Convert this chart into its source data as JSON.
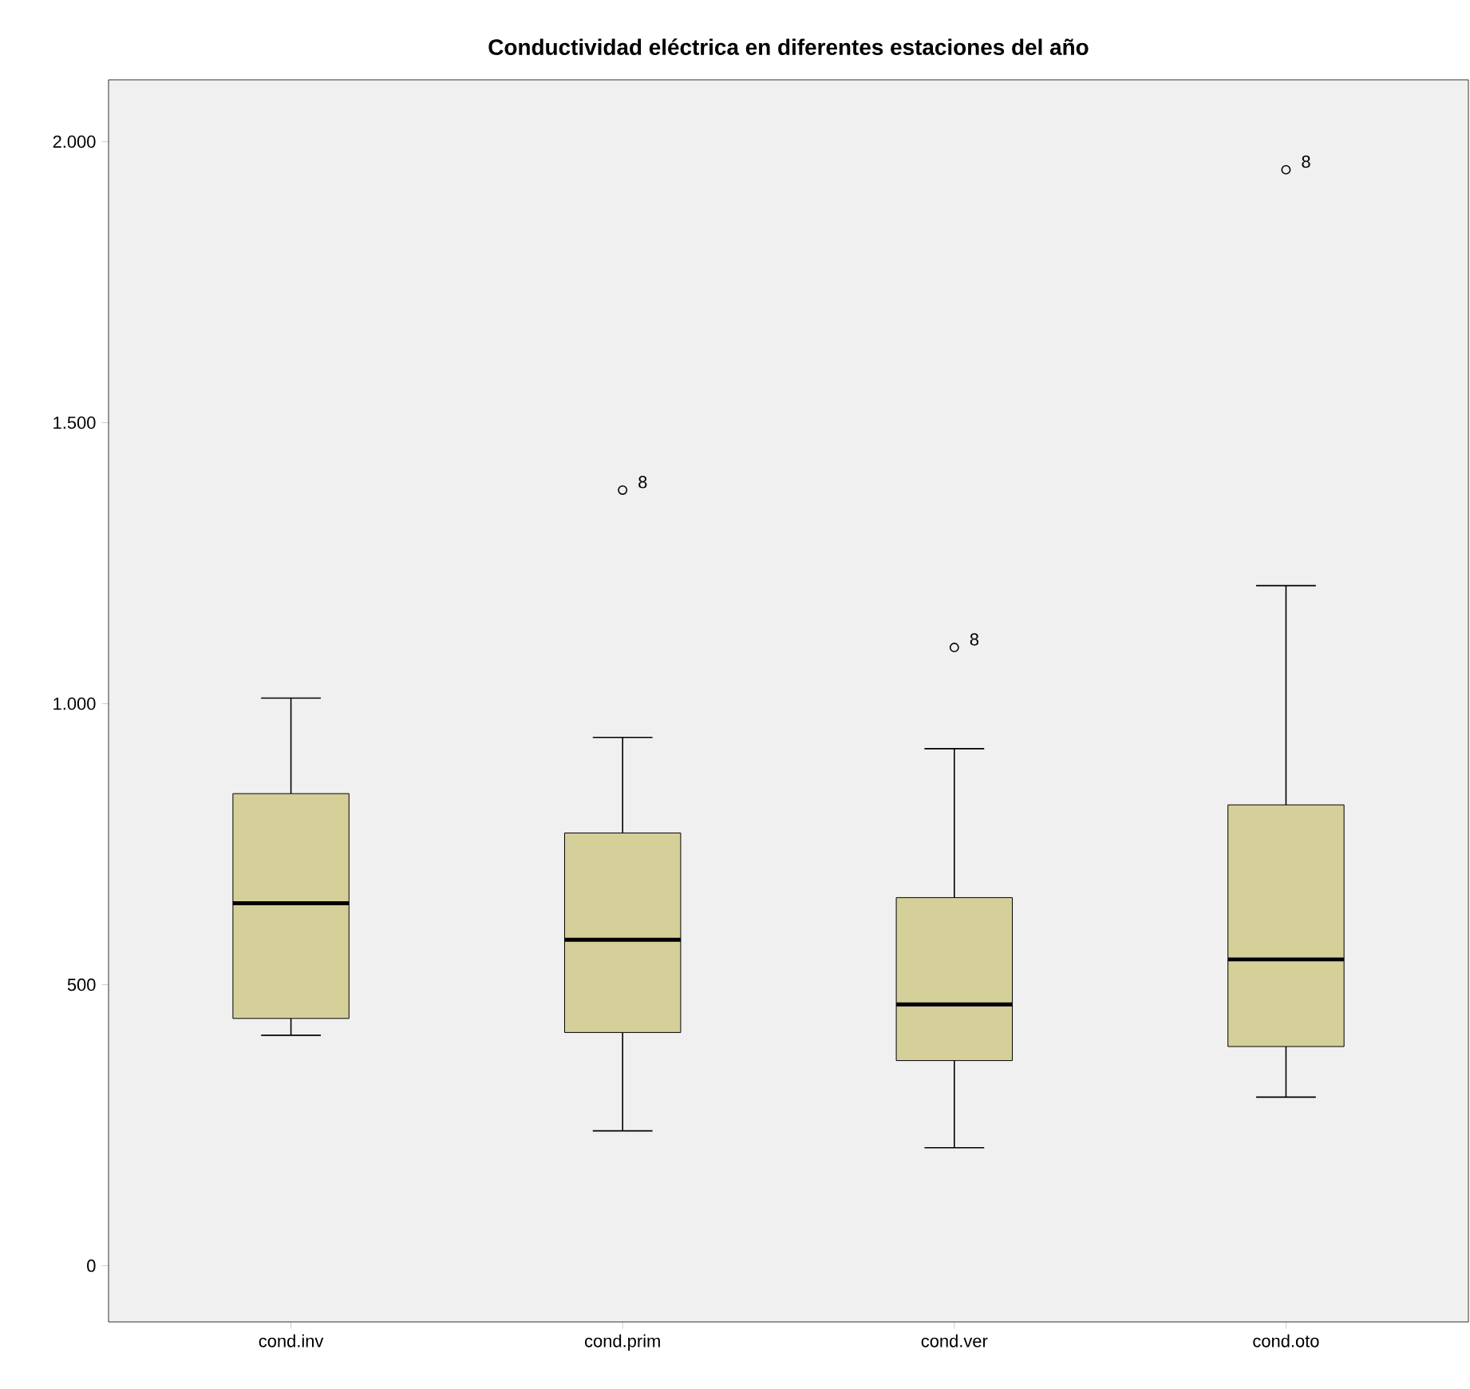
{
  "chart_data": {
    "type": "box",
    "title": "Conductividad eléctrica en diferentes estaciones del año",
    "categories": [
      "cond.inv",
      "cond.prim",
      "cond.ver",
      "cond.oto"
    ],
    "color": "#d5cf9a",
    "boxes": [
      {
        "low": 410,
        "q1": 440,
        "median": 645,
        "q3": 840,
        "high": 1010
      },
      {
        "low": 240,
        "q1": 415,
        "median": 580,
        "q3": 770,
        "high": 940,
        "outliers": [
          1380
        ]
      },
      {
        "low": 210,
        "q1": 365,
        "median": 465,
        "q3": 655,
        "high": 920,
        "outliers": [
          1100
        ]
      },
      {
        "low": 300,
        "q1": 390,
        "median": 545,
        "q3": 820,
        "high": 1210,
        "outliers": [
          1950
        ]
      }
    ],
    "ylim": [
      -100,
      2110
    ],
    "yticks": [
      0,
      {
        "value": 500,
        "label": "500"
      },
      {
        "value": 1000,
        "label": "1.000"
      },
      {
        "value": 1500,
        "label": "1.500"
      },
      {
        "value": 2000,
        "label": "2.000"
      }
    ],
    "annotations": [
      "8",
      "8",
      "8"
    ]
  }
}
